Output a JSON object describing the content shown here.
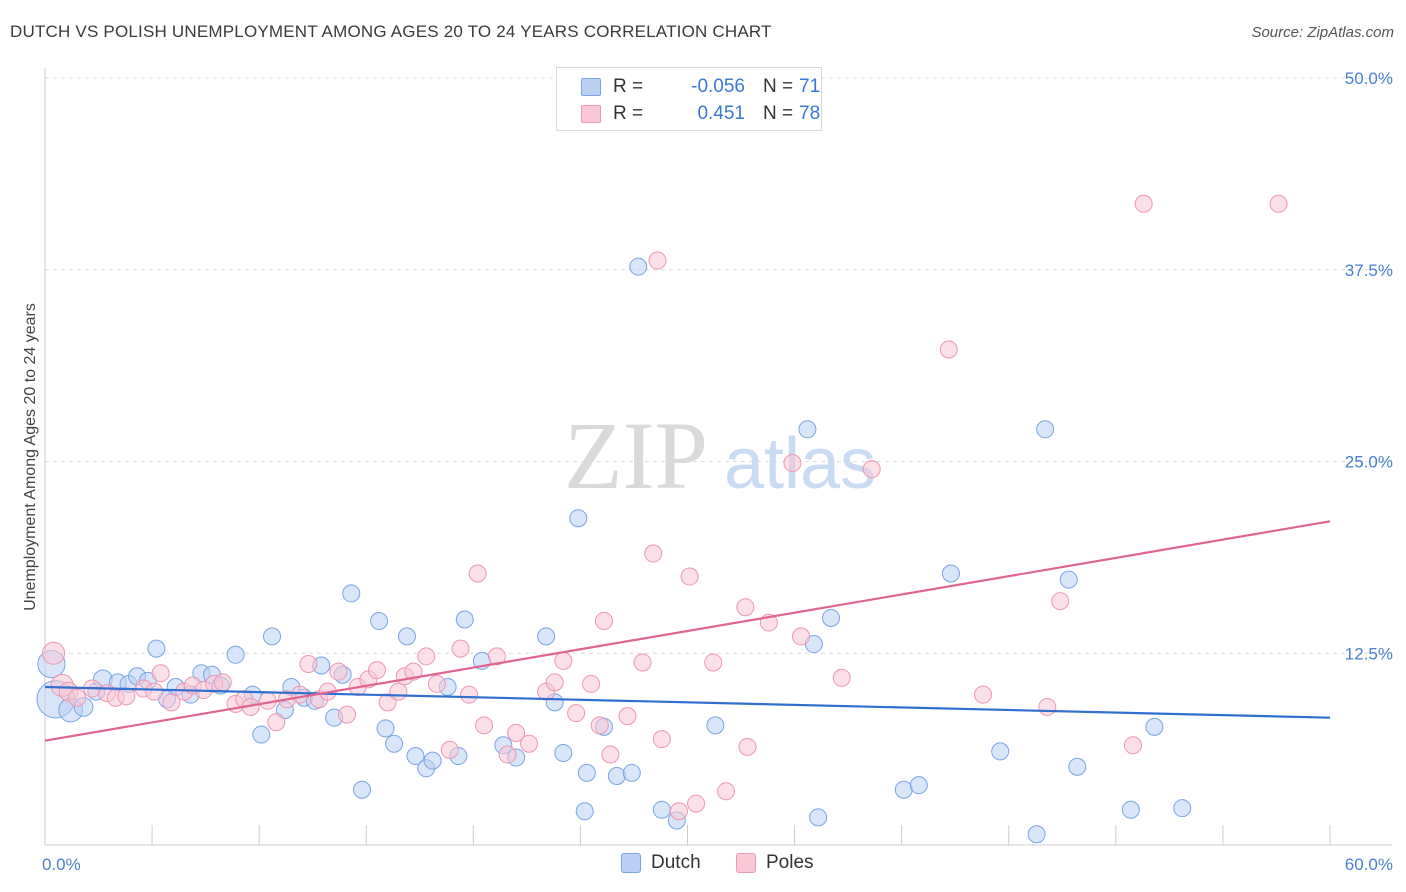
{
  "title": "DUTCH VS POLISH UNEMPLOYMENT AMONG AGES 20 TO 24 YEARS CORRELATION CHART",
  "source": "Source: ZipAtlas.com",
  "watermark": {
    "zip": "ZIP",
    "atlas": "atlas"
  },
  "stats": {
    "rows": [
      {
        "r_label": "R =",
        "r_value": "-0.056",
        "n_label": "N =",
        "n_value": "71",
        "color": "#a8c6f0",
        "border": "#6f9ee0"
      },
      {
        "r_label": "R =",
        "r_value": "0.451",
        "n_label": "N =",
        "n_value": "78",
        "color": "#f7bfd0",
        "border": "#e98aaa"
      }
    ]
  },
  "legend": {
    "dutch": "Dutch",
    "poles": "Poles"
  },
  "colors": {
    "dutch_fill": "#b9d0f3",
    "dutch_stroke": "#7aa5e3",
    "dutch_line": "#2f6fce",
    "poles_fill": "#f9c7d6",
    "poles_stroke": "#ec97b3",
    "poles_line": "#e0648f",
    "axis_label": "#4a7fd0",
    "grid": "#dcdcdc"
  },
  "chart_data": {
    "type": "scatter",
    "title": "DUTCH VS POLISH UNEMPLOYMENT AMONG AGES 20 TO 24 YEARS CORRELATION CHART",
    "xlabel": "",
    "ylabel": "Unemployment Among Ages 20 to 24 years",
    "xlim": [
      0,
      60
    ],
    "ylim": [
      0,
      50
    ],
    "x_tick_labels": [
      "0.0%",
      "60.0%"
    ],
    "y_ticks": [
      12.5,
      25.0,
      37.5,
      50.0
    ],
    "y_tick_labels": [
      "12.5%",
      "25.0%",
      "37.5%",
      "50.0%"
    ],
    "grid": true,
    "legend_position": "bottom",
    "series": [
      {
        "name": "Dutch",
        "r": -0.056,
        "n": 71,
        "trend": {
          "x": [
            0,
            60
          ],
          "y": [
            10.3,
            8.3
          ]
        },
        "points": [
          [
            0.5,
            9.5,
            2.2
          ],
          [
            1.2,
            8.8,
            1.4
          ],
          [
            1.8,
            9.0,
            1.1
          ],
          [
            2.4,
            10.0,
            1.0
          ],
          [
            2.7,
            10.8,
            1.1
          ],
          [
            3.4,
            10.6,
            1.0
          ],
          [
            3.9,
            10.5,
            1.0
          ],
          [
            4.3,
            11.0,
            1.0
          ],
          [
            4.8,
            10.7,
            1.0
          ],
          [
            5.2,
            12.8,
            1.0
          ],
          [
            6.1,
            10.3,
            1.0
          ],
          [
            5.7,
            9.5,
            1.0
          ],
          [
            6.8,
            9.8,
            1.0
          ],
          [
            7.3,
            11.2,
            1.0
          ],
          [
            7.8,
            11.1,
            1.0
          ],
          [
            8.2,
            10.4,
            1.0
          ],
          [
            8.9,
            12.4,
            1.0
          ],
          [
            9.7,
            9.8,
            1.0
          ],
          [
            10.1,
            7.2,
            1.0
          ],
          [
            10.6,
            13.6,
            1.0
          ],
          [
            11.2,
            8.8,
            1.0
          ],
          [
            11.5,
            10.3,
            1.0
          ],
          [
            12.1,
            9.6,
            1.0
          ],
          [
            12.6,
            9.4,
            1.0
          ],
          [
            12.9,
            11.7,
            1.0
          ],
          [
            13.5,
            8.3,
            1.0
          ],
          [
            13.9,
            11.1,
            1.0
          ],
          [
            14.3,
            16.4,
            1.0
          ],
          [
            14.8,
            3.6,
            1.0
          ],
          [
            15.6,
            14.6,
            1.0
          ],
          [
            15.9,
            7.6,
            1.0
          ],
          [
            16.3,
            6.6,
            1.0
          ],
          [
            16.9,
            13.6,
            1.0
          ],
          [
            17.3,
            5.8,
            1.0
          ],
          [
            17.8,
            5.0,
            1.0
          ],
          [
            18.1,
            5.5,
            1.0
          ],
          [
            18.8,
            10.3,
            1.0
          ],
          [
            19.3,
            5.8,
            1.0
          ],
          [
            19.6,
            14.7,
            1.0
          ],
          [
            20.4,
            12.0,
            1.0
          ],
          [
            21.4,
            6.5,
            1.0
          ],
          [
            22.0,
            5.7,
            1.0
          ],
          [
            23.4,
            13.6,
            1.0
          ],
          [
            23.8,
            9.3,
            1.0
          ],
          [
            24.2,
            6.0,
            1.0
          ],
          [
            24.9,
            21.3,
            1.0
          ],
          [
            25.2,
            2.2,
            1.0
          ],
          [
            25.3,
            4.7,
            1.0
          ],
          [
            26.1,
            7.7,
            1.0
          ],
          [
            26.7,
            4.5,
            1.0
          ],
          [
            27.4,
            4.7,
            1.0
          ],
          [
            27.7,
            37.7,
            1.0
          ],
          [
            28.8,
            2.3,
            1.0
          ],
          [
            29.5,
            1.6,
            1.0
          ],
          [
            31.3,
            7.8,
            1.0
          ],
          [
            35.6,
            27.1,
            1.0
          ],
          [
            35.9,
            13.1,
            1.0
          ],
          [
            36.1,
            1.8,
            1.0
          ],
          [
            36.7,
            14.8,
            1.0
          ],
          [
            40.1,
            3.6,
            1.0
          ],
          [
            40.8,
            3.9,
            1.0
          ],
          [
            42.3,
            17.7,
            1.0
          ],
          [
            44.6,
            6.1,
            1.0
          ],
          [
            46.3,
            0.7,
            1.0
          ],
          [
            46.7,
            27.1,
            1.0
          ],
          [
            47.8,
            17.3,
            1.0
          ],
          [
            48.2,
            5.1,
            1.0
          ],
          [
            50.7,
            2.3,
            1.0
          ],
          [
            51.8,
            7.7,
            1.0
          ],
          [
            53.1,
            2.4,
            1.0
          ],
          [
            0.3,
            11.8,
            1.6
          ]
        ]
      },
      {
        "name": "Poles",
        "r": 0.451,
        "n": 78,
        "trend": {
          "x": [
            0,
            60
          ],
          "y": [
            6.8,
            21.1
          ]
        },
        "points": [
          [
            0.4,
            12.5,
            1.3
          ],
          [
            0.8,
            10.4,
            1.3
          ],
          [
            1.1,
            10.0,
            1.1
          ],
          [
            1.5,
            9.6,
            1.0
          ],
          [
            2.2,
            10.2,
            1.0
          ],
          [
            2.9,
            9.9,
            1.0
          ],
          [
            3.3,
            9.6,
            1.0
          ],
          [
            3.8,
            9.7,
            1.0
          ],
          [
            4.6,
            10.2,
            1.0
          ],
          [
            5.1,
            10.0,
            1.0
          ],
          [
            5.4,
            11.2,
            1.0
          ],
          [
            5.9,
            9.3,
            1.0
          ],
          [
            6.5,
            10.0,
            1.0
          ],
          [
            6.9,
            10.4,
            1.0
          ],
          [
            7.4,
            10.1,
            1.0
          ],
          [
            7.9,
            10.5,
            1.0
          ],
          [
            8.3,
            10.6,
            1.0
          ],
          [
            8.9,
            9.2,
            1.0
          ],
          [
            9.3,
            9.5,
            1.0
          ],
          [
            9.6,
            9.0,
            1.0
          ],
          [
            10.4,
            9.4,
            1.0
          ],
          [
            10.8,
            8.0,
            1.0
          ],
          [
            11.3,
            9.5,
            1.0
          ],
          [
            11.9,
            9.8,
            1.0
          ],
          [
            12.3,
            11.8,
            1.0
          ],
          [
            12.8,
            9.5,
            1.0
          ],
          [
            13.2,
            10.0,
            1.0
          ],
          [
            13.7,
            11.3,
            1.0
          ],
          [
            14.1,
            8.5,
            1.0
          ],
          [
            14.6,
            10.3,
            1.0
          ],
          [
            15.1,
            10.8,
            1.0
          ],
          [
            15.5,
            11.4,
            1.0
          ],
          [
            16.0,
            9.3,
            1.0
          ],
          [
            16.5,
            10.0,
            1.0
          ],
          [
            16.8,
            11.0,
            1.0
          ],
          [
            17.2,
            11.3,
            1.0
          ],
          [
            17.8,
            12.3,
            1.0
          ],
          [
            18.3,
            10.5,
            1.0
          ],
          [
            18.9,
            6.2,
            1.0
          ],
          [
            19.4,
            12.8,
            1.0
          ],
          [
            19.8,
            9.8,
            1.0
          ],
          [
            20.5,
            7.8,
            1.0
          ],
          [
            20.2,
            17.7,
            1.0
          ],
          [
            21.1,
            12.3,
            1.0
          ],
          [
            21.6,
            5.9,
            1.0
          ],
          [
            22.0,
            7.3,
            1.0
          ],
          [
            22.6,
            6.6,
            1.0
          ],
          [
            23.4,
            10.0,
            1.0
          ],
          [
            23.8,
            10.6,
            1.0
          ],
          [
            24.2,
            12.0,
            1.0
          ],
          [
            24.8,
            8.6,
            1.0
          ],
          [
            25.5,
            10.5,
            1.0
          ],
          [
            25.9,
            7.8,
            1.0
          ],
          [
            26.4,
            5.9,
            1.0
          ],
          [
            26.1,
            14.6,
            1.0
          ],
          [
            27.2,
            8.4,
            1.0
          ],
          [
            27.9,
            11.9,
            1.0
          ],
          [
            28.4,
            19.0,
            1.0
          ],
          [
            28.8,
            6.9,
            1.0
          ],
          [
            29.6,
            2.2,
            1.0
          ],
          [
            30.1,
            17.5,
            1.0
          ],
          [
            30.4,
            2.7,
            1.0
          ],
          [
            31.2,
            11.9,
            1.0
          ],
          [
            31.8,
            3.5,
            1.0
          ],
          [
            32.7,
            15.5,
            1.0
          ],
          [
            32.8,
            6.4,
            1.0
          ],
          [
            33.8,
            14.5,
            1.0
          ],
          [
            35.3,
            13.6,
            1.0
          ],
          [
            34.9,
            24.9,
            1.0
          ],
          [
            37.2,
            10.9,
            1.0
          ],
          [
            38.6,
            24.5,
            1.0
          ],
          [
            42.2,
            32.3,
            1.0
          ],
          [
            43.8,
            9.8,
            1.0
          ],
          [
            46.8,
            9.0,
            1.0
          ],
          [
            47.4,
            15.9,
            1.0
          ],
          [
            50.8,
            6.5,
            1.0
          ],
          [
            51.3,
            41.8,
            1.0
          ],
          [
            57.6,
            41.8,
            1.0
          ]
        ]
      }
    ],
    "extra_pole_point": [
      28.6,
      38.1
    ]
  }
}
